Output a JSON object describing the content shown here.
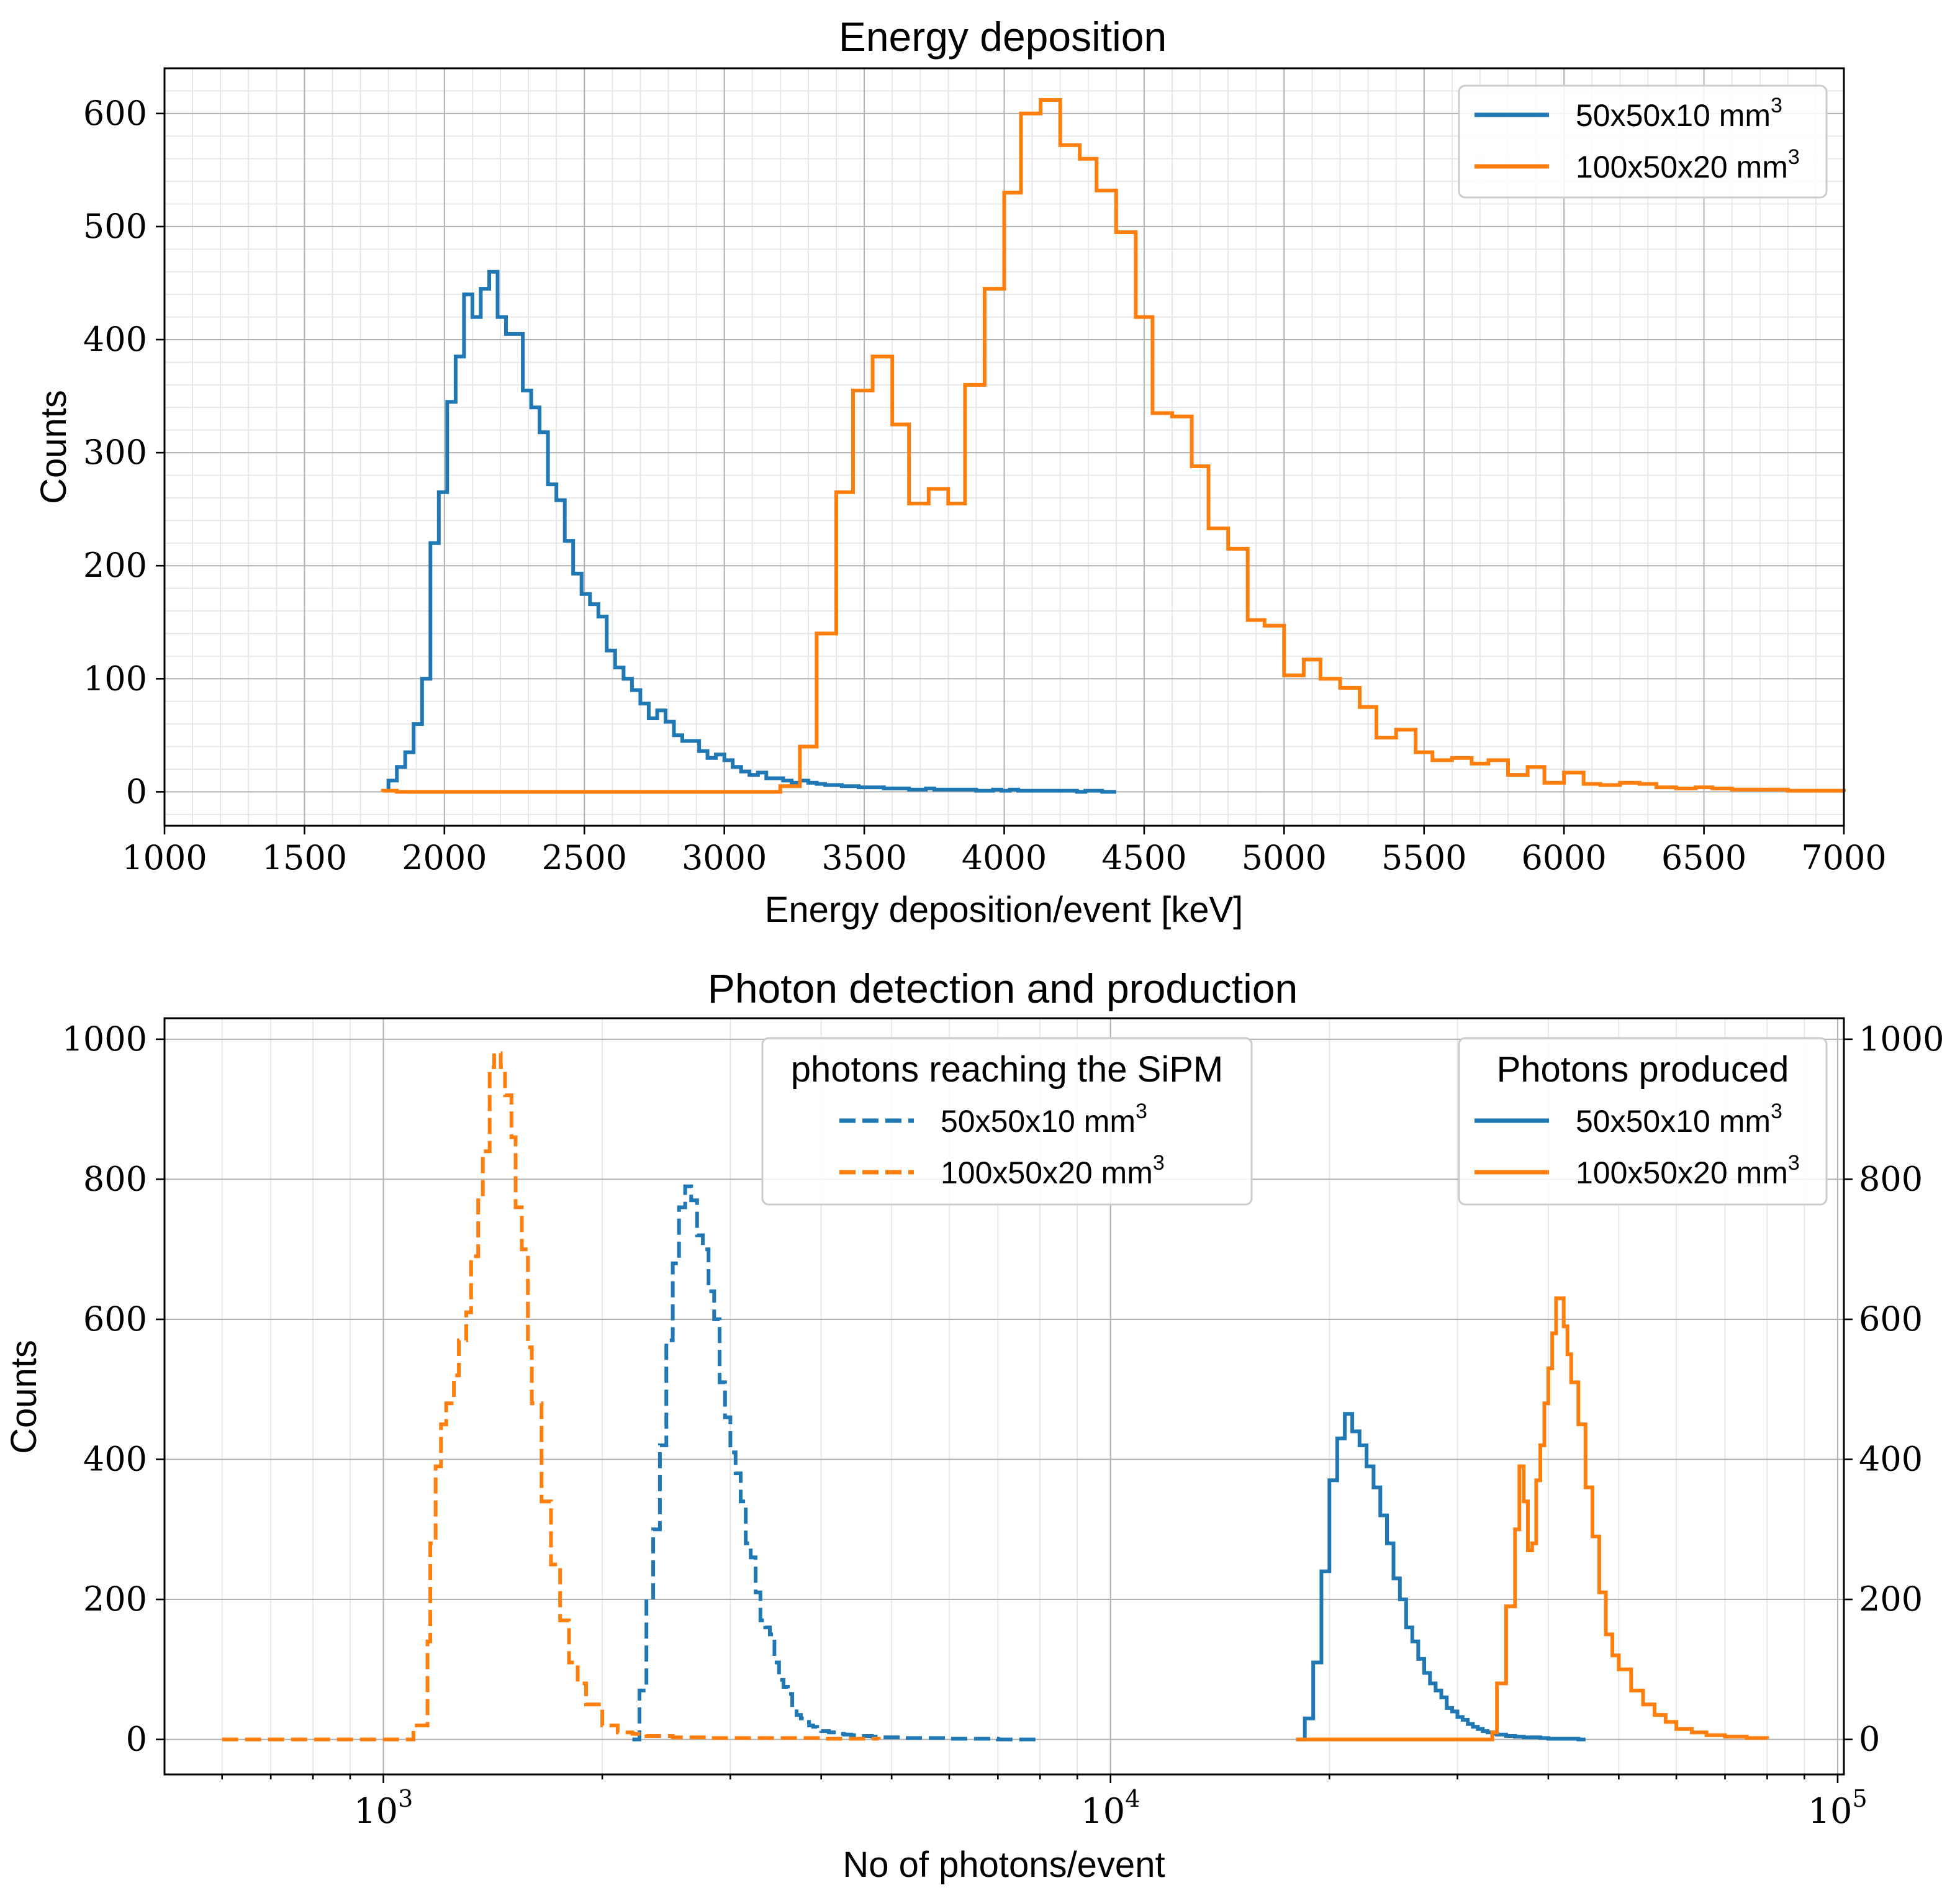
{
  "colors": {
    "blue": "#1f77b4",
    "orange": "#ff7f0e"
  },
  "chart_data": [
    {
      "type": "line",
      "style": "step-histogram",
      "title": "Energy deposition",
      "xlabel": "Energy deposition/event [keV]",
      "ylabel": "Counts",
      "xlim": [
        1000,
        7000
      ],
      "ylim": [
        -30,
        640
      ],
      "xticks": [
        1000,
        1500,
        2000,
        2500,
        3000,
        3500,
        4000,
        4500,
        5000,
        5500,
        6000,
        6500,
        7000
      ],
      "yticks": [
        0,
        100,
        200,
        300,
        400,
        500,
        600
      ],
      "grid": true,
      "legend_position": "top-right",
      "legend": [
        {
          "label": "50x50x10 mm",
          "sup": "3",
          "series": 0
        },
        {
          "label": "100x50x20 mm",
          "sup": "3",
          "series": 1
        }
      ],
      "series": [
        {
          "name": "50x50x10 mm3",
          "color": "#1f77b4",
          "edges": [
            1800,
            1830,
            1860,
            1890,
            1920,
            1950,
            1980,
            2010,
            2040,
            2070,
            2100,
            2130,
            2160,
            2190,
            2220,
            2250,
            2280,
            2310,
            2340,
            2370,
            2400,
            2430,
            2460,
            2490,
            2520,
            2550,
            2580,
            2610,
            2640,
            2670,
            2700,
            2730,
            2760,
            2790,
            2820,
            2850,
            2880,
            2910,
            2940,
            2970,
            3000,
            3030,
            3060,
            3090,
            3120,
            3150,
            3180,
            3210,
            3240,
            3270,
            3300,
            3330,
            3360,
            3390,
            3420,
            3450,
            3480,
            3510,
            3540,
            3570,
            3600,
            3630,
            3660,
            3690,
            3720,
            3750,
            3780,
            3810,
            3840,
            3870,
            3900,
            3930,
            3960,
            3990,
            4020,
            4050,
            4080,
            4110,
            4140,
            4170,
            4200,
            4230,
            4260,
            4290,
            4320,
            4350,
            4380,
            4400
          ],
          "counts": [
            10,
            22,
            35,
            60,
            100,
            220,
            265,
            345,
            385,
            440,
            420,
            445,
            460,
            420,
            405,
            405,
            355,
            340,
            318,
            272,
            258,
            222,
            193,
            175,
            166,
            155,
            125,
            110,
            100,
            90,
            78,
            65,
            72,
            62,
            50,
            45,
            45,
            36,
            30,
            33,
            28,
            22,
            18,
            15,
            17,
            12,
            12,
            10,
            8,
            10,
            8,
            7,
            6,
            6,
            5,
            5,
            4,
            4,
            4,
            3,
            3,
            3,
            2,
            2,
            3,
            2,
            2,
            2,
            2,
            2,
            1,
            1,
            2,
            1,
            2,
            1,
            1,
            1,
            1,
            1,
            1,
            1,
            0,
            1,
            1,
            0,
            0
          ]
        },
        {
          "name": "100x50x20 mm3",
          "color": "#ff7f0e",
          "edges": [
            1780,
            1830,
            1880,
            3200,
            3270,
            3330,
            3400,
            3460,
            3530,
            3600,
            3660,
            3730,
            3800,
            3860,
            3930,
            4000,
            4060,
            4130,
            4200,
            4270,
            4330,
            4400,
            4470,
            4530,
            4600,
            4670,
            4730,
            4800,
            4870,
            4930,
            5000,
            5070,
            5130,
            5200,
            5270,
            5330,
            5400,
            5470,
            5530,
            5600,
            5670,
            5730,
            5800,
            5870,
            5930,
            6000,
            6070,
            6130,
            6200,
            6270,
            6330,
            6400,
            6470,
            6530,
            6600,
            6670,
            6730,
            6800,
            6870,
            6930,
            7000
          ],
          "counts": [
            1,
            0,
            0,
            5,
            40,
            140,
            265,
            355,
            385,
            325,
            255,
            268,
            255,
            360,
            445,
            530,
            600,
            612,
            572,
            560,
            532,
            495,
            420,
            335,
            332,
            288,
            233,
            215,
            152,
            147,
            103,
            117,
            100,
            92,
            75,
            48,
            55,
            35,
            28,
            30,
            25,
            28,
            15,
            22,
            8,
            17,
            7,
            6,
            8,
            7,
            4,
            3,
            4,
            3,
            2,
            2,
            2,
            1,
            1,
            1
          ]
        }
      ]
    },
    {
      "type": "line",
      "style": "step-histogram",
      "title": "Photon detection and production",
      "xlabel": "No of photons/event",
      "ylabel": "Counts",
      "xscale": "log",
      "xlim": [
        500,
        102000
      ],
      "ylim": [
        -50,
        1030
      ],
      "xticks": [
        1000,
        10000,
        100000
      ],
      "xtick_labels": [
        {
          "base": "10",
          "exp": "3"
        },
        {
          "base": "10",
          "exp": "4"
        },
        {
          "base": "10",
          "exp": "5"
        }
      ],
      "yticks": [
        0,
        200,
        400,
        600,
        800,
        1000
      ],
      "y2ticks": [
        0,
        200,
        400,
        600,
        800,
        1000
      ],
      "grid": true,
      "legends": [
        {
          "title": "photons reaching the SiPM",
          "position": "top-center",
          "entries": [
            {
              "label": "50x50x10 mm",
              "sup": "3",
              "series": 0
            },
            {
              "label": "100x50x20 mm",
              "sup": "3",
              "series": 1
            }
          ]
        },
        {
          "title": "Photons produced",
          "position": "top-right",
          "entries": [
            {
              "label": "50x50x10 mm",
              "sup": "3",
              "series": 2
            },
            {
              "label": "100x50x20 mm",
              "sup": "3",
              "series": 3
            }
          ]
        }
      ],
      "series": [
        {
          "name": "photons reaching the SiPM 50x50x10 mm3",
          "color": "#1f77b4",
          "dashed": true,
          "x": [
            2200,
            2250,
            2300,
            2350,
            2400,
            2450,
            2500,
            2550,
            2600,
            2650,
            2700,
            2750,
            2800,
            2850,
            2900,
            2950,
            3000,
            3050,
            3100,
            3150,
            3200,
            3250,
            3300,
            3350,
            3400,
            3450,
            3500,
            3550,
            3600,
            3650,
            3700,
            3750,
            3800,
            3850,
            3900,
            3950,
            4000,
            4100,
            4200,
            4300,
            4400,
            4500,
            4600,
            4700,
            4800,
            5000,
            5200,
            5500,
            6000,
            7000,
            8000
          ],
          "y": [
            0,
            70,
            200,
            300,
            420,
            570,
            680,
            760,
            790,
            770,
            720,
            700,
            640,
            600,
            510,
            460,
            410,
            380,
            340,
            280,
            260,
            210,
            170,
            160,
            150,
            110,
            85,
            75,
            65,
            45,
            35,
            30,
            25,
            20,
            18,
            14,
            12,
            10,
            8,
            7,
            6,
            5,
            5,
            4,
            3,
            3,
            2,
            2,
            1,
            0,
            0
          ]
        },
        {
          "name": "photons reaching the SiPM 100x50x20 mm3",
          "color": "#ff7f0e",
          "dashed": true,
          "x": [
            600,
            800,
            1000,
            1100,
            1150,
            1160,
            1180,
            1200,
            1220,
            1250,
            1270,
            1300,
            1320,
            1350,
            1370,
            1400,
            1420,
            1450,
            1470,
            1500,
            1520,
            1550,
            1580,
            1600,
            1650,
            1700,
            1750,
            1800,
            1850,
            1900,
            2000,
            2100,
            2200,
            2300,
            2500,
            2800,
            3200,
            4000,
            4800
          ],
          "y": [
            0,
            0,
            0,
            20,
            140,
            280,
            390,
            450,
            480,
            520,
            570,
            610,
            690,
            770,
            840,
            960,
            980,
            960,
            920,
            860,
            760,
            700,
            560,
            480,
            340,
            250,
            170,
            110,
            80,
            50,
            20,
            10,
            8,
            5,
            3,
            2,
            2,
            1,
            0
          ]
        },
        {
          "name": "Photons produced 50x50x10 mm3",
          "color": "#1f77b4",
          "dashed": false,
          "x": [
            18000,
            18500,
            19000,
            19500,
            20000,
            20500,
            21000,
            21500,
            22000,
            22500,
            23000,
            23500,
            24000,
            24500,
            25000,
            25500,
            26000,
            26500,
            27000,
            27500,
            28000,
            28500,
            29000,
            29500,
            30000,
            30500,
            31000,
            31500,
            32000,
            32500,
            33000,
            33500,
            34000,
            35000,
            36000,
            37000,
            38000,
            39000,
            40000,
            42000,
            44000,
            45000
          ],
          "y": [
            0,
            30,
            110,
            240,
            370,
            430,
            465,
            440,
            420,
            390,
            360,
            320,
            280,
            230,
            200,
            160,
            140,
            115,
            95,
            80,
            70,
            60,
            45,
            40,
            32,
            28,
            22,
            18,
            15,
            12,
            10,
            8,
            7,
            5,
            4,
            3,
            3,
            2,
            1,
            1,
            0,
            0
          ]
        },
        {
          "name": "Photons produced 100x50x20 mm3",
          "color": "#ff7f0e",
          "dashed": false,
          "x": [
            18000,
            25000,
            30000,
            33500,
            34000,
            35000,
            36000,
            36500,
            37000,
            37500,
            38000,
            38500,
            39000,
            39500,
            40000,
            40500,
            41000,
            42000,
            42500,
            43000,
            44000,
            45000,
            46000,
            47000,
            48000,
            49000,
            50000,
            52000,
            54000,
            56000,
            58000,
            60000,
            63000,
            66000,
            70000,
            75000,
            80000
          ],
          "y": [
            0,
            0,
            0,
            10,
            80,
            190,
            300,
            390,
            340,
            270,
            280,
            370,
            420,
            480,
            530,
            580,
            630,
            590,
            550,
            510,
            450,
            360,
            290,
            210,
            150,
            120,
            100,
            70,
            50,
            35,
            25,
            15,
            10,
            6,
            4,
            2,
            1
          ]
        }
      ]
    }
  ]
}
